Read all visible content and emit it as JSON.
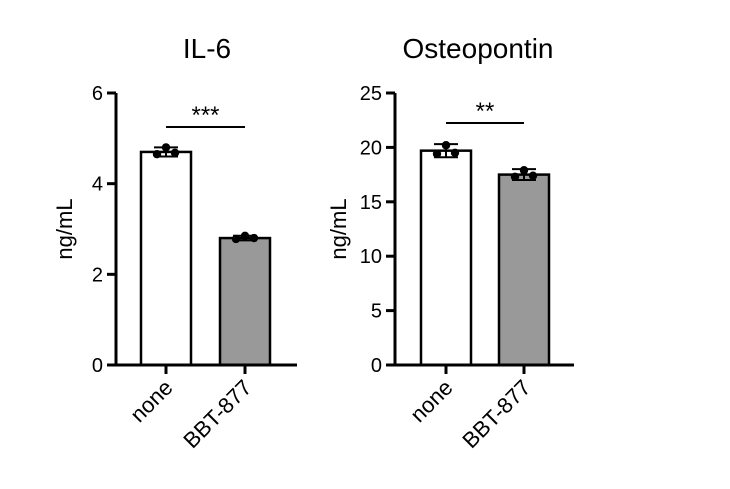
{
  "chart_data": [
    {
      "type": "bar",
      "title": "IL-6",
      "ylabel": "ng/mL",
      "xlabel": "",
      "categories": [
        "none",
        "BBT-877"
      ],
      "values": [
        4.7,
        2.8
      ],
      "errors": [
        0.1,
        0.05
      ],
      "points": [
        [
          4.8,
          4.65,
          4.68
        ],
        [
          2.85,
          2.78,
          2.8
        ]
      ],
      "ylim": [
        0,
        6
      ],
      "yticks": [
        0,
        2,
        4,
        6
      ],
      "significance": "***",
      "bar_colors": [
        "#ffffff",
        "#999999"
      ],
      "grid": false
    },
    {
      "type": "bar",
      "title": "Osteopontin",
      "ylabel": "ng/mL",
      "xlabel": "",
      "categories": [
        "none",
        "BBT-877"
      ],
      "values": [
        19.7,
        17.5
      ],
      "errors": [
        0.6,
        0.5
      ],
      "points": [
        [
          20.2,
          19.4,
          19.5
        ],
        [
          17.9,
          17.3,
          17.4
        ]
      ],
      "ylim": [
        0,
        25
      ],
      "yticks": [
        0,
        5,
        10,
        15,
        20,
        25
      ],
      "significance": "**",
      "bar_colors": [
        "#ffffff",
        "#999999"
      ],
      "grid": false
    }
  ]
}
